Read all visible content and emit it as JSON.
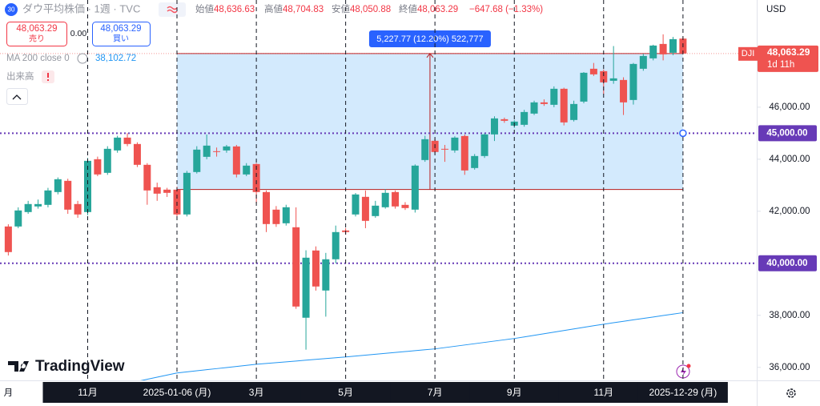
{
  "chart_data": {
    "type": "candlestick",
    "categories": [
      "月",
      null,
      null,
      null,
      null,
      null,
      null,
      null,
      "11月",
      null,
      null,
      null,
      null,
      null,
      null,
      null,
      null,
      "2025-01-06 (月)",
      null,
      null,
      null,
      null,
      null,
      null,
      null,
      "3月",
      null,
      null,
      null,
      null,
      null,
      null,
      null,
      null,
      "5月",
      null,
      null,
      null,
      null,
      null,
      null,
      null,
      null,
      "7月",
      null,
      null,
      null,
      null,
      null,
      null,
      null,
      "9月",
      null,
      null,
      null,
      null,
      null,
      null,
      null,
      null,
      "11月",
      null,
      null,
      null,
      null,
      null,
      null,
      null,
      "2025-12-29 (月)"
    ],
    "series": [
      {
        "name": "DJI",
        "up_color": "#26a69a",
        "down_color": "#ef5350",
        "open": [
          41415,
          41415,
          41969,
          42185,
          42246,
          42738,
          43169,
          42277,
          41969,
          44000,
          43477,
          44338,
          44831,
          44585,
          43785,
          42923,
          42831,
          42831,
          41877,
          43508,
          44092,
          44308,
          44338,
          44492,
          43415,
          43815,
          42738,
          42062,
          41538,
          41385,
          37908,
          40492,
          38954,
          40154,
          41262,
          41877,
          42554,
          41815,
          42154,
          42738,
          42246,
          42062,
          43969,
          44708,
          44400,
          44338,
          44892,
          43662,
          44123,
          44954,
          45538,
          45292,
          45323,
          45754,
          46185,
          46092,
          46708,
          45508,
          46215,
          47477,
          47385,
          47015,
          47046,
          46277,
          47477,
          47877,
          48431,
          48092,
          48636.63
        ],
        "high": [
          41500,
          42150,
          42400,
          42450,
          42900,
          43300,
          43250,
          42400,
          44050,
          44100,
          44500,
          44900,
          45000,
          44650,
          43850,
          43100,
          42900,
          42950,
          43550,
          44500,
          44950,
          44450,
          44550,
          44550,
          43850,
          43850,
          42800,
          42200,
          42250,
          42150,
          40500,
          40650,
          40400,
          41450,
          41350,
          42700,
          42800,
          42400,
          42850,
          42800,
          42350,
          43800,
          44900,
          44800,
          44550,
          44880,
          44950,
          44200,
          45000,
          45650,
          45600,
          45500,
          45900,
          46250,
          46300,
          46800,
          46750,
          46250,
          47350,
          47700,
          47450,
          48350,
          47150,
          47700,
          48050,
          48400,
          48800,
          48700,
          48704.83
        ],
        "low": [
          40300,
          41350,
          41900,
          42100,
          42150,
          42650,
          41900,
          41750,
          41850,
          43350,
          43400,
          44250,
          44500,
          43700,
          42250,
          42400,
          42550,
          41750,
          41800,
          43450,
          44000,
          44100,
          44250,
          43300,
          43350,
          42300,
          41200,
          41400,
          41450,
          38250,
          36680,
          38950,
          37950,
          40000,
          41100,
          41800,
          41350,
          41750,
          42100,
          42100,
          42050,
          41950,
          43900,
          44200,
          43900,
          44250,
          43400,
          43600,
          44050,
          44700,
          45400,
          45200,
          45250,
          45700,
          46050,
          46000,
          45300,
          45450,
          46150,
          47200,
          46500,
          46900,
          45700,
          46100,
          47400,
          47800,
          47800,
          48000,
          48050.88
        ],
        "close": [
          40431,
          42031,
          42277,
          42277,
          42800,
          43231,
          42062,
          41877,
          43938,
          43415,
          44400,
          44831,
          44585,
          43785,
          42800,
          42677,
          42708,
          41877,
          43477,
          44369,
          44523,
          44277,
          44492,
          43415,
          43754,
          42738,
          41508,
          41508,
          42154,
          38338,
          40215,
          39108,
          40154,
          41200,
          41200,
          42646,
          41631,
          42215,
          42708,
          42185,
          42123,
          43754,
          44769,
          44277,
          44369,
          44831,
          43569,
          44123,
          44954,
          45569,
          45477,
          45446,
          45815,
          46185,
          46123,
          46708,
          45415,
          46123,
          47323,
          47262,
          46954,
          47108,
          46185,
          47662,
          47969,
          48369,
          48031,
          48615,
          48063.29
        ]
      }
    ],
    "ma": {
      "name": "MA 200 close 0",
      "color": "#2196f3",
      "value_label": "38,102.72",
      "values": [
        null,
        null,
        null,
        null,
        null,
        null,
        null,
        null,
        null,
        null,
        null,
        null,
        null,
        35460,
        35541,
        35623,
        35704,
        35785,
        35827,
        35869,
        35910,
        35952,
        35994,
        36036,
        36078,
        36120,
        36151,
        36182,
        36213,
        36244,
        36276,
        36307,
        36338,
        36369,
        36400,
        36434,
        36469,
        36503,
        36538,
        36572,
        36607,
        36641,
        36676,
        36710,
        36760,
        36810,
        36860,
        36910,
        36960,
        37010,
        37060,
        37110,
        37171,
        37232,
        37293,
        37354,
        37416,
        37477,
        37538,
        37599,
        37660,
        37715,
        37770,
        37826,
        37881,
        37936,
        37992,
        38047,
        38102.72
      ]
    },
    "last_price": {
      "value": 48063.29,
      "label": "48,063.29",
      "countdown": "1d 11h"
    },
    "hlines": [
      {
        "value": 45000,
        "label": "45,000.00",
        "color": "#673ab7"
      },
      {
        "value": 40000,
        "label": "40,000.00",
        "color": "#673ab7"
      }
    ],
    "measure": {
      "low": 42835.52,
      "high": 48063.29,
      "label": "5,227.77 (12.20%) 522,777",
      "fill": "rgba(33,150,243,0.2)",
      "edge_color": "#b71c1c",
      "label_color": "#2962ff"
    },
    "ylim": [
      35500,
      50120
    ],
    "yticks": [
      {
        "value": 36000,
        "label": "36,000.00"
      },
      {
        "value": 38000,
        "label": "38,000.00"
      },
      {
        "value": 42000,
        "label": "42,000.00"
      },
      {
        "value": 44000,
        "label": "44,000.00"
      },
      {
        "value": 46000,
        "label": "46,000.00"
      }
    ],
    "currency": "USD"
  },
  "ui": {
    "badge": "30",
    "symbol": "ダウ平均株価 · 1週 · TVC",
    "ohlc": [
      {
        "label": "始値",
        "value": "48,636.63"
      },
      {
        "label": "高値",
        "value": "48,704.83"
      },
      {
        "label": "安値",
        "value": "48,050.88"
      },
      {
        "label": "終値",
        "value": "48,063.29"
      }
    ],
    "change": "−647.68 (−1.33%)",
    "sell_price": "48,063.29",
    "sell": "売り",
    "spread": "0.00",
    "buy_price": "48,063.29",
    "buy": "買い",
    "volume": "出来高",
    "logo": "TradingView"
  }
}
